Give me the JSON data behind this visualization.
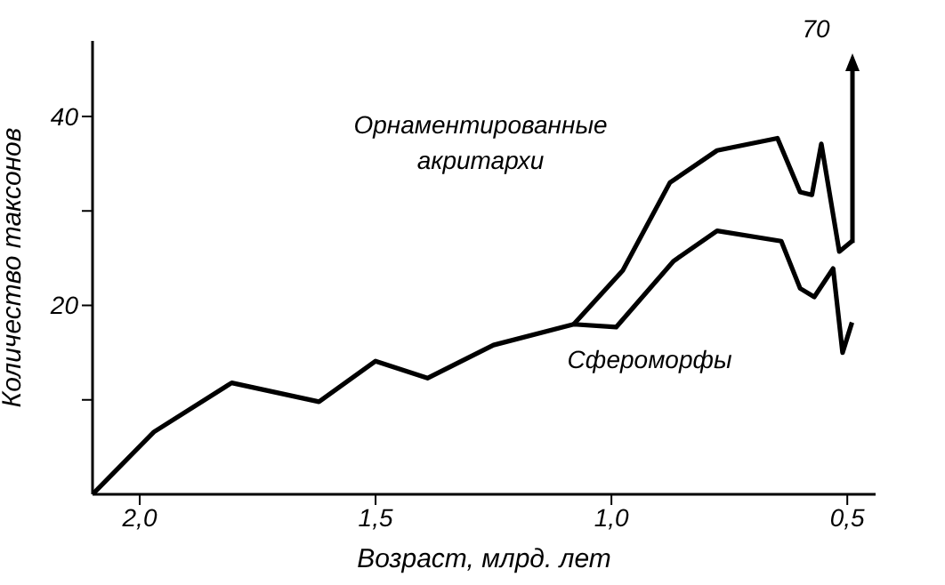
{
  "chart_data": {
    "type": "line",
    "xlabel": "Возраст, млрд. лет",
    "ylabel": "Количество таксонов",
    "xlim": [
      2.1,
      0.44
    ],
    "xticks": [
      {
        "value": 2.0,
        "label": "2,0"
      },
      {
        "value": 1.5,
        "label": "1,5"
      },
      {
        "value": 1.0,
        "label": "1,0"
      },
      {
        "value": 0.5,
        "label": "0,5"
      }
    ],
    "ylim": [
      0,
      48
    ],
    "yticks": [
      {
        "value": 10,
        "label": null
      },
      20,
      {
        "value": 30,
        "label": null
      },
      40
    ],
    "grid": false,
    "annotations": [
      {
        "text": "70",
        "x": 0.49,
        "y": 26.8
      }
    ],
    "series": [
      {
        "name": "Сфероморфы",
        "color": "#000000",
        "x": [
          2.1,
          1.97,
          1.805,
          1.62,
          1.5,
          1.39,
          1.25,
          1.08,
          0.99,
          0.868,
          0.776,
          0.64,
          0.6,
          0.57,
          0.53,
          0.51,
          0.49
        ],
        "values": [
          0,
          6.6,
          11.8,
          9.8,
          14.1,
          12.3,
          15.8,
          18.0,
          17.7,
          24.7,
          27.9,
          26.8,
          21.8,
          20.9,
          23.9,
          15.0,
          18.2
        ]
      },
      {
        "name": "Орнаментированные акритархи",
        "color": "#000000",
        "x": [
          1.08,
          0.976,
          0.876,
          0.776,
          0.648,
          0.6,
          0.575,
          0.555,
          0.517,
          0.49
        ],
        "values": [
          18.0,
          23.7,
          33.0,
          36.4,
          37.7,
          32.0,
          31.7,
          37.1,
          25.7,
          26.8
        ]
      }
    ]
  }
}
